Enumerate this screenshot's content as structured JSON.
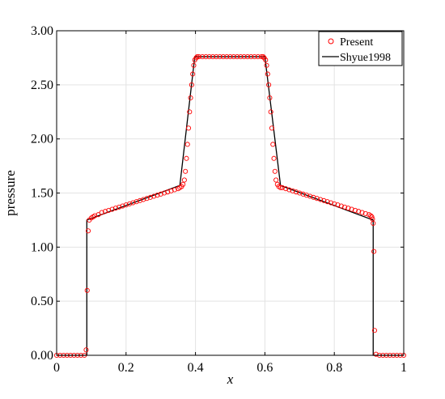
{
  "chart_data": {
    "type": "line",
    "title": "",
    "xlabel": "x",
    "ylabel": "pressure",
    "xlim": [
      0,
      1
    ],
    "ylim": [
      0,
      3
    ],
    "x_ticks": [
      0,
      0.2,
      0.4,
      0.6,
      0.8,
      1
    ],
    "x_tick_labels": [
      "0",
      "0.2",
      "0.4",
      "0.6",
      "0.8",
      "1"
    ],
    "y_ticks": [
      0,
      0.5,
      1,
      1.5,
      2,
      2.5,
      3
    ],
    "y_tick_labels": [
      "0.00",
      "0.50",
      "1.00",
      "1.50",
      "2.00",
      "2.50",
      "3.00"
    ],
    "grid": true,
    "legend_position": "top-right",
    "series": [
      {
        "name": "Present",
        "style": "markers",
        "marker": "open-circle",
        "color": "#ff0000",
        "x": [
          0.0,
          0.01,
          0.02,
          0.03,
          0.04,
          0.05,
          0.06,
          0.07,
          0.08,
          0.085,
          0.088,
          0.091,
          0.094,
          0.1,
          0.105,
          0.11,
          0.12,
          0.13,
          0.14,
          0.15,
          0.16,
          0.17,
          0.18,
          0.19,
          0.2,
          0.21,
          0.22,
          0.23,
          0.24,
          0.25,
          0.26,
          0.27,
          0.28,
          0.29,
          0.3,
          0.31,
          0.32,
          0.33,
          0.34,
          0.35,
          0.355,
          0.36,
          0.364,
          0.368,
          0.371,
          0.374,
          0.377,
          0.38,
          0.383,
          0.386,
          0.389,
          0.392,
          0.395,
          0.398,
          0.402,
          0.405,
          0.41,
          0.42,
          0.43,
          0.44,
          0.45,
          0.46,
          0.47,
          0.48,
          0.49,
          0.5,
          0.51,
          0.52,
          0.53,
          0.54,
          0.55,
          0.56,
          0.57,
          0.58,
          0.59,
          0.595,
          0.598,
          0.602,
          0.605,
          0.608,
          0.611,
          0.614,
          0.617,
          0.62,
          0.623,
          0.626,
          0.629,
          0.632,
          0.636,
          0.64,
          0.645,
          0.65,
          0.66,
          0.67,
          0.68,
          0.69,
          0.7,
          0.71,
          0.72,
          0.73,
          0.74,
          0.75,
          0.76,
          0.77,
          0.78,
          0.79,
          0.8,
          0.81,
          0.82,
          0.83,
          0.84,
          0.85,
          0.86,
          0.87,
          0.88,
          0.89,
          0.9,
          0.905,
          0.908,
          0.91,
          0.912,
          0.914,
          0.916,
          0.92,
          0.93,
          0.94,
          0.95,
          0.96,
          0.97,
          0.98,
          0.99,
          1.0
        ],
        "y": [
          0.0,
          0.0,
          0.0,
          0.0,
          0.0,
          0.0,
          0.0,
          0.0,
          0.0,
          0.05,
          0.6,
          1.15,
          1.25,
          1.27,
          1.28,
          1.29,
          1.3,
          1.32,
          1.33,
          1.34,
          1.35,
          1.36,
          1.37,
          1.38,
          1.39,
          1.4,
          1.41,
          1.42,
          1.43,
          1.44,
          1.45,
          1.46,
          1.47,
          1.48,
          1.49,
          1.5,
          1.51,
          1.52,
          1.53,
          1.54,
          1.55,
          1.56,
          1.58,
          1.62,
          1.7,
          1.82,
          1.95,
          2.1,
          2.25,
          2.38,
          2.5,
          2.6,
          2.68,
          2.73,
          2.75,
          2.76,
          2.76,
          2.76,
          2.76,
          2.76,
          2.76,
          2.76,
          2.76,
          2.76,
          2.76,
          2.76,
          2.76,
          2.76,
          2.76,
          2.76,
          2.76,
          2.76,
          2.76,
          2.76,
          2.76,
          2.76,
          2.75,
          2.73,
          2.68,
          2.6,
          2.5,
          2.38,
          2.25,
          2.1,
          1.95,
          1.82,
          1.7,
          1.62,
          1.58,
          1.56,
          1.55,
          1.55,
          1.54,
          1.53,
          1.52,
          1.51,
          1.5,
          1.49,
          1.48,
          1.47,
          1.46,
          1.45,
          1.44,
          1.43,
          1.42,
          1.41,
          1.4,
          1.39,
          1.38,
          1.37,
          1.36,
          1.35,
          1.34,
          1.33,
          1.32,
          1.31,
          1.3,
          1.29,
          1.28,
          1.26,
          1.22,
          0.96,
          0.23,
          0.01,
          0.0,
          0.0,
          0.0,
          0.0,
          0.0,
          0.0,
          0.0,
          0.0
        ]
      },
      {
        "name": "Shyue1998",
        "style": "line",
        "color": "#000000",
        "x": [
          0.0,
          0.087,
          0.087,
          0.355,
          0.398,
          0.6,
          0.645,
          0.912,
          0.912,
          1.0
        ],
        "y": [
          0.0,
          0.0,
          1.25,
          1.57,
          2.76,
          2.76,
          1.57,
          1.25,
          0.0,
          0.0
        ]
      }
    ]
  }
}
